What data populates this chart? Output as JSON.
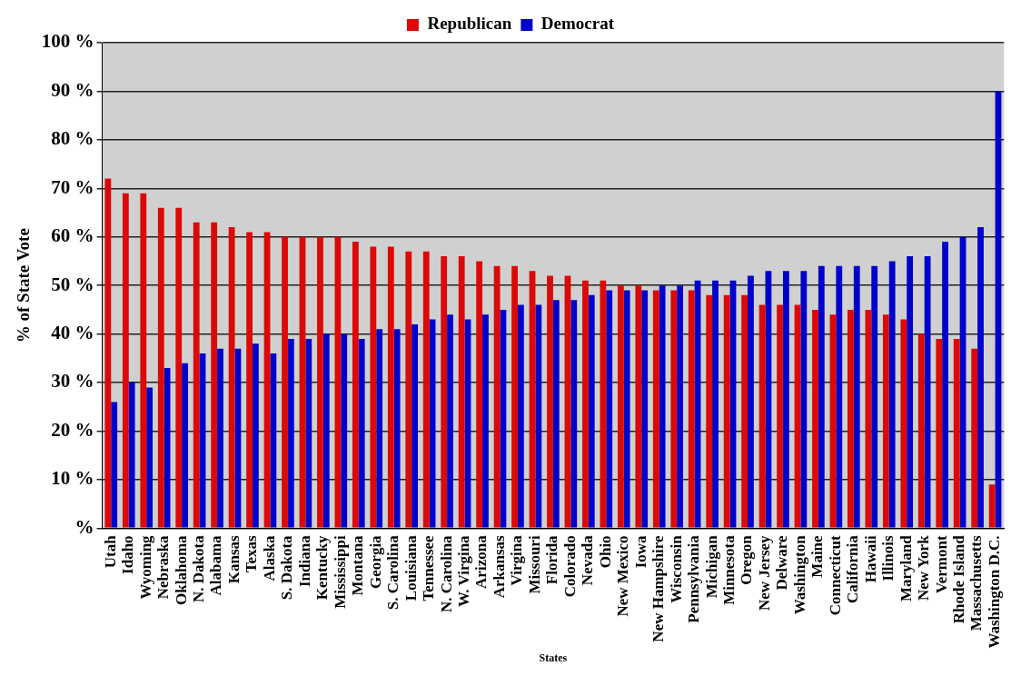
{
  "chart_data": {
    "type": "bar",
    "xlabel": "States",
    "ylabel": "% of State Vote",
    "categories": [
      "Utah",
      "Idaho",
      "Wyoming",
      "Nebraska",
      "Oklahoma",
      "N. Dakota",
      "Alabama",
      "Kansas",
      "Texas",
      "Alaska",
      "S. Dakota",
      "Indiana",
      "Kentucky",
      "Mississippi",
      "Montana",
      "Georgia",
      "S. Carolina",
      "Louisiana",
      "Tennessee",
      "N. Carolina",
      "W. Virgina",
      "Arizona",
      "Arkansas",
      "Virgina",
      "Missouri",
      "Florida",
      "Colorado",
      "Nevada",
      "Ohio",
      "New Mexico",
      "Iowa",
      "New Hampshire",
      "Wisconsin",
      "Pennsylvania",
      "Michigan",
      "Minnesota",
      "Oregon",
      "New Jersey",
      "Delware",
      "Washington",
      "Maine",
      "Connecticut",
      "California",
      "Hawaii",
      "Illinois",
      "Maryland",
      "New York",
      "Vermont",
      "Rhode Island",
      "Massachusetts",
      "Washington D.C."
    ],
    "series": [
      {
        "name": "Republican",
        "color": "#dd0808",
        "values": [
          72,
          69,
          69,
          66,
          66,
          63,
          63,
          62,
          61,
          61,
          60,
          60,
          60,
          60,
          59,
          58,
          58,
          57,
          57,
          56,
          56,
          55,
          54,
          54,
          53,
          52,
          52,
          51,
          51,
          50,
          50,
          49,
          49,
          49,
          48,
          48,
          48,
          46,
          46,
          46,
          45,
          44,
          45,
          45,
          44,
          43,
          40,
          39,
          39,
          37,
          9
        ]
      },
      {
        "name": "Democrat",
        "color": "#0000cc",
        "values": [
          26,
          30,
          29,
          33,
          34,
          36,
          37,
          37,
          38,
          36,
          39,
          39,
          40,
          40,
          39,
          41,
          41,
          42,
          43,
          44,
          43,
          44,
          45,
          46,
          46,
          47,
          47,
          48,
          49,
          49,
          49,
          50,
          50,
          51,
          51,
          51,
          52,
          53,
          53,
          53,
          54,
          54,
          54,
          54,
          55,
          56,
          56,
          59,
          60,
          62,
          90
        ]
      }
    ],
    "ylim": [
      0,
      100
    ],
    "yticks": [
      {
        "value": 0,
        "label": "%"
      },
      {
        "value": 10,
        "label": "10 %"
      },
      {
        "value": 20,
        "label": "20 %"
      },
      {
        "value": 30,
        "label": "30 %"
      },
      {
        "value": 40,
        "label": "40 %"
      },
      {
        "value": 50,
        "label": "50 %"
      },
      {
        "value": 60,
        "label": "60 %"
      },
      {
        "value": 70,
        "label": "70 %"
      },
      {
        "value": 80,
        "label": "80 %"
      },
      {
        "value": 90,
        "label": "90 %"
      },
      {
        "value": 100,
        "label": "100 %"
      }
    ],
    "grid": "y",
    "legend": "top"
  }
}
